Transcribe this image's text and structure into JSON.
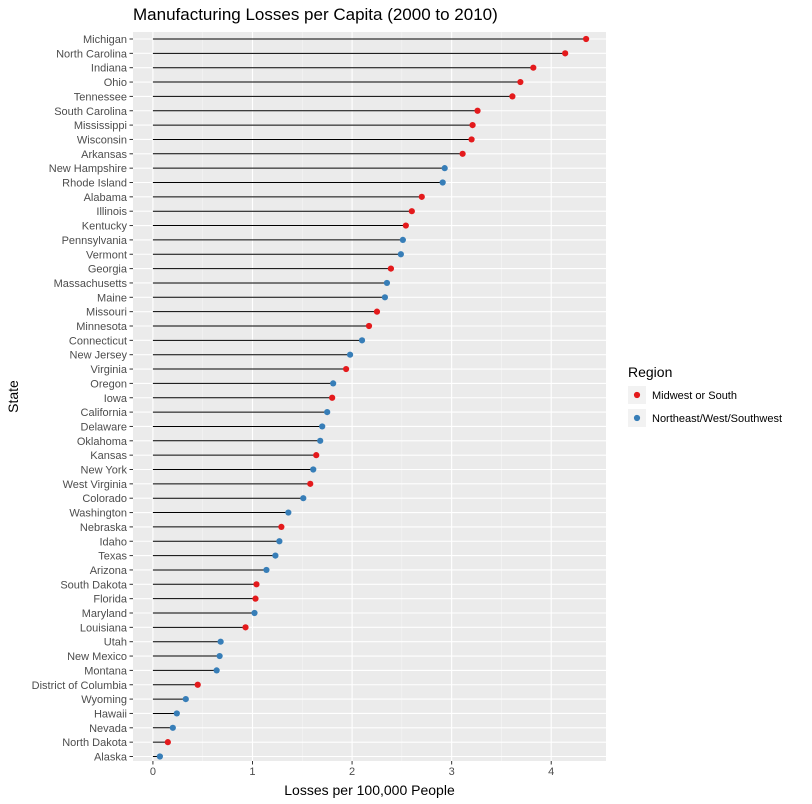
{
  "chart_data": {
    "type": "scatter",
    "title": "Manufacturing Losses per Capita (2000 to 2010)",
    "xlabel": "Losses per 100,000 People",
    "ylabel": "State",
    "xlim": [
      -0.2,
      4.55
    ],
    "xticks": [
      0,
      1,
      2,
      3,
      4
    ],
    "grid": true,
    "legend": {
      "title": "Region",
      "placement": "right",
      "entries": [
        {
          "name": "Midwest or South",
          "color": "#e41a1c"
        },
        {
          "name": "Northeast/West/Southwest",
          "color": "#377eb8"
        }
      ]
    },
    "states": [
      {
        "state": "Michigan",
        "value": 4.35,
        "region": "Midwest or South"
      },
      {
        "state": "North Carolina",
        "value": 4.14,
        "region": "Midwest or South"
      },
      {
        "state": "Indiana",
        "value": 3.82,
        "region": "Midwest or South"
      },
      {
        "state": "Ohio",
        "value": 3.69,
        "region": "Midwest or South"
      },
      {
        "state": "Tennessee",
        "value": 3.61,
        "region": "Midwest or South"
      },
      {
        "state": "South Carolina",
        "value": 3.26,
        "region": "Midwest or South"
      },
      {
        "state": "Mississippi",
        "value": 3.21,
        "region": "Midwest or South"
      },
      {
        "state": "Wisconsin",
        "value": 3.2,
        "region": "Midwest or South"
      },
      {
        "state": "Arkansas",
        "value": 3.11,
        "region": "Midwest or South"
      },
      {
        "state": "New Hampshire",
        "value": 2.93,
        "region": "Northeast/West/Southwest"
      },
      {
        "state": "Rhode Island",
        "value": 2.91,
        "region": "Northeast/West/Southwest"
      },
      {
        "state": "Alabama",
        "value": 2.7,
        "region": "Midwest or South"
      },
      {
        "state": "Illinois",
        "value": 2.6,
        "region": "Midwest or South"
      },
      {
        "state": "Kentucky",
        "value": 2.54,
        "region": "Midwest or South"
      },
      {
        "state": "Pennsylvania",
        "value": 2.51,
        "region": "Northeast/West/Southwest"
      },
      {
        "state": "Vermont",
        "value": 2.49,
        "region": "Northeast/West/Southwest"
      },
      {
        "state": "Georgia",
        "value": 2.39,
        "region": "Midwest or South"
      },
      {
        "state": "Massachusetts",
        "value": 2.35,
        "region": "Northeast/West/Southwest"
      },
      {
        "state": "Maine",
        "value": 2.33,
        "region": "Northeast/West/Southwest"
      },
      {
        "state": "Missouri",
        "value": 2.25,
        "region": "Midwest or South"
      },
      {
        "state": "Minnesota",
        "value": 2.17,
        "region": "Midwest or South"
      },
      {
        "state": "Connecticut",
        "value": 2.1,
        "region": "Northeast/West/Southwest"
      },
      {
        "state": "New Jersey",
        "value": 1.98,
        "region": "Northeast/West/Southwest"
      },
      {
        "state": "Virginia",
        "value": 1.94,
        "region": "Midwest or South"
      },
      {
        "state": "Oregon",
        "value": 1.81,
        "region": "Northeast/West/Southwest"
      },
      {
        "state": "Iowa",
        "value": 1.8,
        "region": "Midwest or South"
      },
      {
        "state": "California",
        "value": 1.75,
        "region": "Northeast/West/Southwest"
      },
      {
        "state": "Delaware",
        "value": 1.7,
        "region": "Northeast/West/Southwest"
      },
      {
        "state": "Oklahoma",
        "value": 1.68,
        "region": "Northeast/West/Southwest"
      },
      {
        "state": "Kansas",
        "value": 1.64,
        "region": "Midwest or South"
      },
      {
        "state": "New York",
        "value": 1.61,
        "region": "Northeast/West/Southwest"
      },
      {
        "state": "West Virginia",
        "value": 1.58,
        "region": "Midwest or South"
      },
      {
        "state": "Colorado",
        "value": 1.51,
        "region": "Northeast/West/Southwest"
      },
      {
        "state": "Washington",
        "value": 1.36,
        "region": "Northeast/West/Southwest"
      },
      {
        "state": "Nebraska",
        "value": 1.29,
        "region": "Midwest or South"
      },
      {
        "state": "Idaho",
        "value": 1.27,
        "region": "Northeast/West/Southwest"
      },
      {
        "state": "Texas",
        "value": 1.23,
        "region": "Northeast/West/Southwest"
      },
      {
        "state": "Arizona",
        "value": 1.14,
        "region": "Northeast/West/Southwest"
      },
      {
        "state": "South Dakota",
        "value": 1.04,
        "region": "Midwest or South"
      },
      {
        "state": "Florida",
        "value": 1.03,
        "region": "Midwest or South"
      },
      {
        "state": "Maryland",
        "value": 1.02,
        "region": "Northeast/West/Southwest"
      },
      {
        "state": "Louisiana",
        "value": 0.93,
        "region": "Midwest or South"
      },
      {
        "state": "Utah",
        "value": 0.68,
        "region": "Northeast/West/Southwest"
      },
      {
        "state": "New Mexico",
        "value": 0.67,
        "region": "Northeast/West/Southwest"
      },
      {
        "state": "Montana",
        "value": 0.64,
        "region": "Northeast/West/Southwest"
      },
      {
        "state": "District of Columbia",
        "value": 0.45,
        "region": "Midwest or South"
      },
      {
        "state": "Wyoming",
        "value": 0.33,
        "region": "Northeast/West/Southwest"
      },
      {
        "state": "Hawaii",
        "value": 0.24,
        "region": "Northeast/West/Southwest"
      },
      {
        "state": "Nevada",
        "value": 0.2,
        "region": "Northeast/West/Southwest"
      },
      {
        "state": "North Dakota",
        "value": 0.15,
        "region": "Midwest or South"
      },
      {
        "state": "Alaska",
        "value": 0.07,
        "region": "Northeast/West/Southwest"
      }
    ]
  }
}
